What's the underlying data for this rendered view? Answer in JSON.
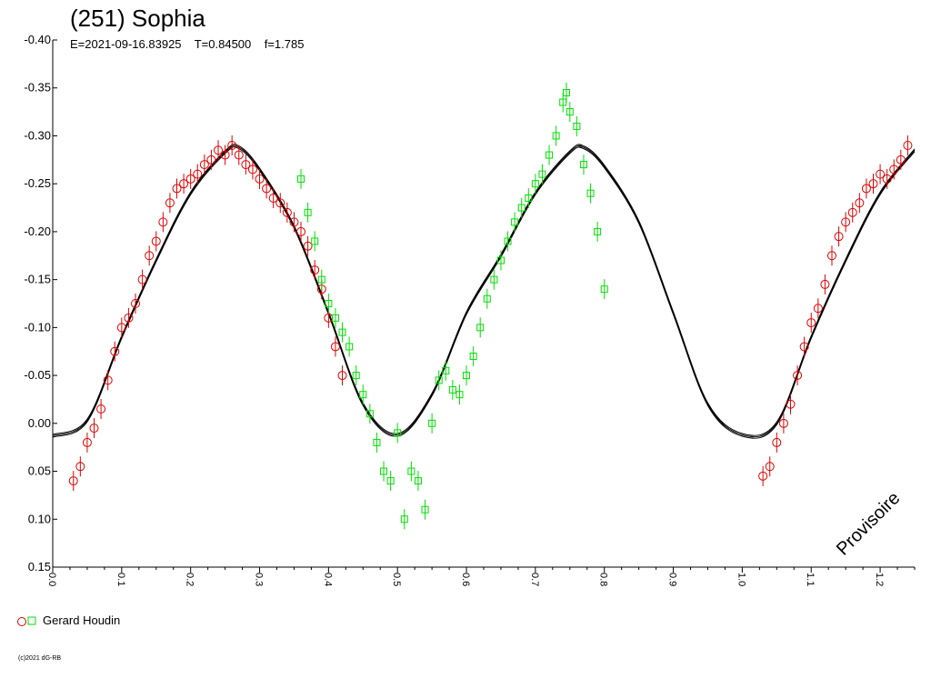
{
  "chart_data": {
    "type": "scatter",
    "title": "(251) Sophia",
    "subtitle": "E=2021-09-16.83925    T=0.84500    f=1.785",
    "x_range": [
      0.0,
      1.25
    ],
    "y_range": [
      -0.4,
      0.15
    ],
    "y_inverted": true,
    "x_tick_values": [
      0.0,
      0.1,
      0.2,
      0.3,
      0.4,
      0.5,
      0.6,
      0.7,
      0.8,
      0.9,
      1.0,
      1.1,
      1.2
    ],
    "x_tick_labels": [
      "0.0",
      "0.1",
      "0.2",
      "0.3",
      "0.4",
      "0.5",
      "0.6",
      "0.7",
      "0.8",
      "0.9",
      "1.0",
      "1.1",
      "1.2"
    ],
    "y_tick_values": [
      -0.4,
      -0.35,
      -0.3,
      -0.25,
      -0.2,
      -0.15,
      -0.1,
      -0.05,
      0.0,
      0.05,
      0.1,
      0.15
    ],
    "y_tick_labels": [
      "-0.40",
      "-0.35",
      "-0.30",
      "-0.25",
      "-0.20",
      "-0.15",
      "-0.10",
      "-0.05",
      "0.00",
      "0.05",
      "0.10",
      "0.15"
    ],
    "fit_curve": {
      "color": "#000000",
      "x": [
        0.0,
        0.05,
        0.1,
        0.15,
        0.2,
        0.25,
        0.27,
        0.3,
        0.35,
        0.4,
        0.45,
        0.5,
        0.55,
        0.6,
        0.65,
        0.7,
        0.75,
        0.77,
        0.8,
        0.85,
        0.9,
        0.95,
        1.0,
        1.05,
        1.1,
        1.15,
        1.2,
        1.25
      ],
      "y": [
        0.013,
        -0.003,
        -0.09,
        -0.17,
        -0.24,
        -0.283,
        -0.288,
        -0.265,
        -0.205,
        -0.115,
        -0.02,
        0.012,
        -0.03,
        -0.115,
        -0.175,
        -0.24,
        -0.283,
        -0.288,
        -0.268,
        -0.21,
        -0.115,
        -0.02,
        0.012,
        0.0,
        -0.09,
        -0.17,
        -0.24,
        -0.285
      ]
    },
    "series": [
      {
        "color": "#e00000",
        "marker": "circle",
        "x": [
          0.03,
          0.04,
          0.05,
          0.06,
          0.07,
          0.08,
          0.09,
          0.1,
          0.11,
          0.12,
          0.13,
          0.14,
          0.15,
          0.16,
          0.17,
          0.18,
          0.19,
          0.2,
          0.21,
          0.22,
          0.23,
          0.24,
          0.25,
          0.26,
          0.27,
          0.28,
          0.29,
          0.3,
          0.31,
          0.32,
          0.33,
          0.34,
          0.35,
          0.36,
          0.37,
          0.38,
          0.39,
          0.4,
          0.41,
          0.42,
          1.03,
          1.04,
          1.05,
          1.06,
          1.07,
          1.08,
          1.09,
          1.1,
          1.11,
          1.12,
          1.13,
          1.14,
          1.15,
          1.16,
          1.17,
          1.18,
          1.19,
          1.2,
          1.21,
          1.22,
          1.23,
          1.24
        ],
        "y": [
          0.06,
          0.045,
          0.02,
          0.005,
          -0.015,
          -0.045,
          -0.075,
          -0.1,
          -0.11,
          -0.125,
          -0.15,
          -0.175,
          -0.19,
          -0.21,
          -0.23,
          -0.245,
          -0.25,
          -0.255,
          -0.26,
          -0.27,
          -0.275,
          -0.285,
          -0.28,
          -0.29,
          -0.28,
          -0.27,
          -0.265,
          -0.255,
          -0.245,
          -0.235,
          -0.23,
          -0.22,
          -0.21,
          -0.2,
          -0.185,
          -0.16,
          -0.14,
          -0.11,
          -0.08,
          -0.05,
          0.055,
          0.045,
          0.02,
          0.0,
          -0.02,
          -0.05,
          -0.08,
          -0.105,
          -0.12,
          -0.145,
          -0.175,
          -0.195,
          -0.21,
          -0.22,
          -0.23,
          -0.245,
          -0.25,
          -0.26,
          -0.255,
          -0.265,
          -0.275,
          -0.29
        ]
      },
      {
        "color": "#00e000",
        "marker": "square",
        "x": [
          0.36,
          0.37,
          0.38,
          0.39,
          0.4,
          0.41,
          0.42,
          0.43,
          0.44,
          0.45,
          0.46,
          0.47,
          0.48,
          0.49,
          0.5,
          0.51,
          0.52,
          0.53,
          0.54,
          0.55,
          0.56,
          0.57,
          0.58,
          0.59,
          0.6,
          0.61,
          0.62,
          0.63,
          0.64,
          0.65,
          0.66,
          0.67,
          0.68,
          0.69,
          0.7,
          0.71,
          0.72,
          0.73,
          0.74,
          0.745,
          0.75,
          0.76,
          0.77,
          0.78,
          0.79,
          0.8
        ],
        "y": [
          -0.255,
          -0.22,
          -0.19,
          -0.15,
          -0.125,
          -0.11,
          -0.095,
          -0.08,
          -0.05,
          -0.03,
          -0.01,
          0.02,
          0.05,
          0.06,
          0.01,
          0.1,
          0.05,
          0.06,
          0.09,
          0.0,
          -0.045,
          -0.055,
          -0.035,
          -0.03,
          -0.05,
          -0.07,
          -0.1,
          -0.13,
          -0.15,
          -0.17,
          -0.19,
          -0.21,
          -0.225,
          -0.235,
          -0.25,
          -0.26,
          -0.28,
          -0.3,
          -0.335,
          -0.345,
          -0.325,
          -0.31,
          -0.27,
          -0.24,
          -0.2,
          -0.14
        ]
      }
    ],
    "legend": {
      "label": "Gerard Houdin",
      "placement": "bottom-left"
    },
    "watermark": "Provisoire",
    "copyright": "(c)2021 dG-RB"
  }
}
